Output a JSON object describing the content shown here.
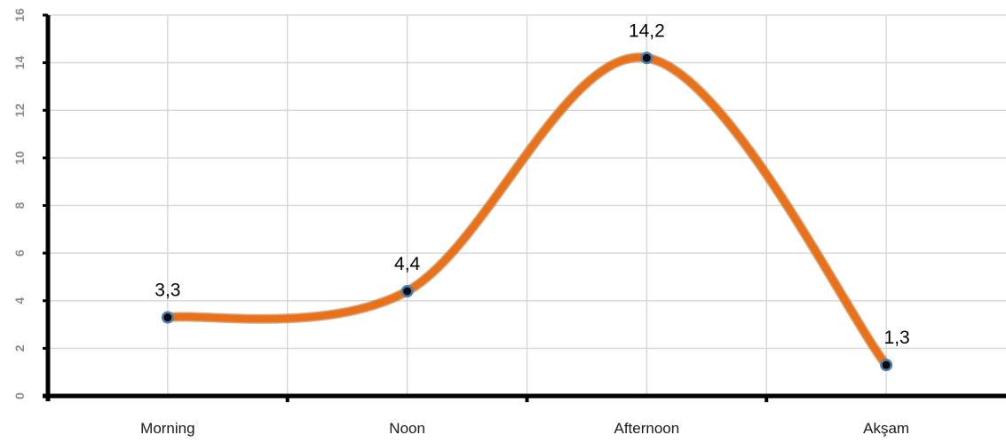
{
  "chart_data": {
    "type": "line",
    "smooth": true,
    "categories": [
      "Morning",
      "Noon",
      "Afternoon",
      "Akşam"
    ],
    "series": [
      {
        "values": [
          3.3,
          4.4,
          14.2,
          1.3
        ],
        "color": "#e8711a"
      }
    ],
    "data_labels": [
      "3,3",
      "4,4",
      "14,2",
      "1,3"
    ],
    "ylim": [
      0,
      16
    ],
    "yticks": [
      0,
      2,
      4,
      6,
      8,
      10,
      12,
      14,
      16
    ],
    "grid": true,
    "legend": "none",
    "marker_color": "#0a0a0a",
    "marker_ring_color": "#4a7fb0"
  }
}
